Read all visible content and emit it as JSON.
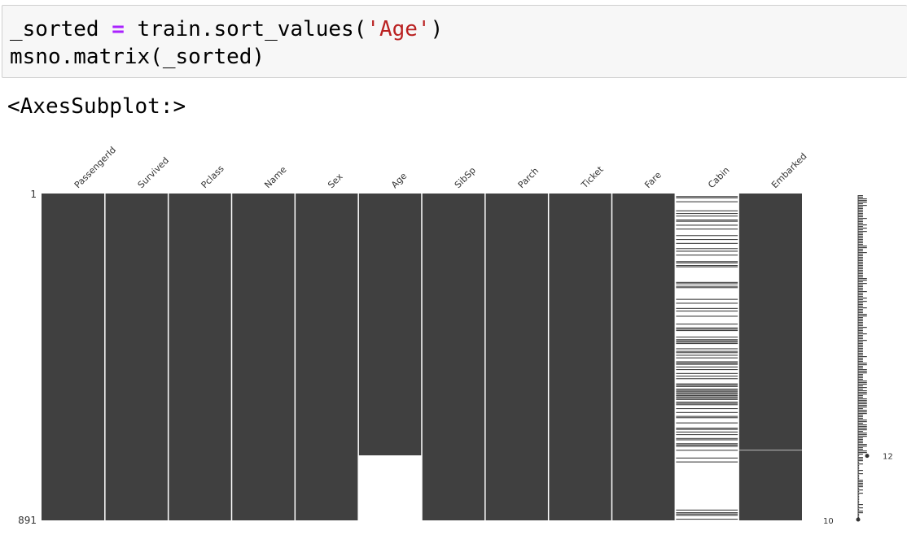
{
  "code": {
    "line1": {
      "var": "_sorted",
      "op": "=",
      "call": "train.sort_values(",
      "arg": "'Age'",
      "close": ")"
    },
    "line2": "msno.matrix(_sorted)"
  },
  "output": {
    "text": "<AxesSubplot:>"
  },
  "chart_data": {
    "type": "heatmap",
    "title": "",
    "columns": [
      "PassengerId",
      "Survived",
      "Pclass",
      "Name",
      "Sex",
      "Age",
      "SibSp",
      "Parch",
      "Ticket",
      "Fare",
      "Cabin",
      "Embarked"
    ],
    "row_range": [
      1,
      891
    ],
    "y_tick_labels": [
      "1",
      "891"
    ],
    "present_fraction": [
      1,
      1,
      1,
      1,
      1,
      0.8013,
      1,
      1,
      1,
      1,
      0.229,
      0.9978
    ],
    "age_missing_starts_at_row": 715,
    "sparkline": {
      "max_label": "12",
      "min_label": "10",
      "max_value": 12,
      "min_value": 10
    },
    "colors": {
      "present": "#404040",
      "missing": "#ffffff",
      "separator": "#ffffff"
    }
  }
}
